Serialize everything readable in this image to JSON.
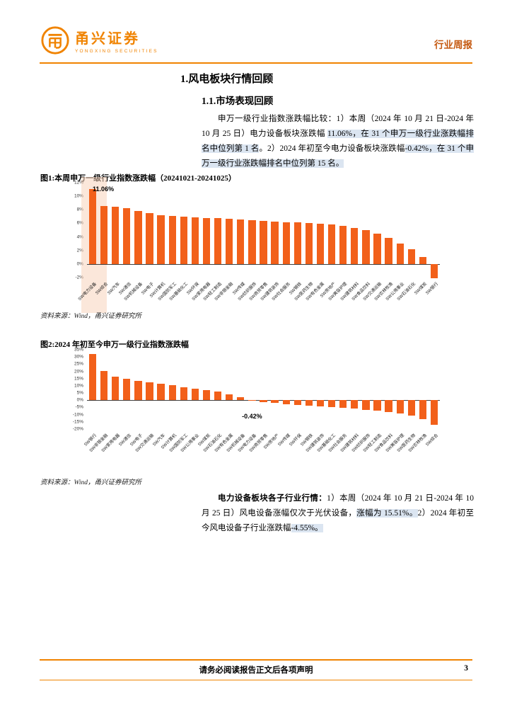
{
  "page": {
    "accent": "#f08300",
    "secondary_accent": "#c55a11",
    "bar_color": "#f2601a",
    "highlight_color": "#dbe5f1"
  },
  "header": {
    "logo_text": "甬兴证券",
    "logo_subtext": "YONGXING SECURITIES",
    "report_type": "行业周报"
  },
  "sections": {
    "h1": "1.风电板块行情回顾",
    "h2": "1.1.市场表现回顾"
  },
  "paragraph1": {
    "segments": [
      {
        "text": "申万一级行业指数涨跌幅比较：1）本周（2024 年 10 月 21 日-2024 年 10 月 25 日）电力设备板块涨跌幅 ",
        "hl": false
      },
      {
        "text": "11.06%，在 31 个申万一级行业涨跌幅排名中位列第 1 名",
        "hl": true
      },
      {
        "text": "。2）2024 年初至今电力设备板块涨跌幅",
        "hl": false
      },
      {
        "text": "-0.42%，在 31 个申万一级行业涨跌幅排名中位列第 15 名。",
        "hl": true
      }
    ]
  },
  "paragraph2": {
    "segments": [
      {
        "text": "电力设备板块各子行业行情：",
        "hl": false,
        "bold": true
      },
      {
        "text": "1）本周（2024 年 10 月 21 日-2024 年 10 月 25 日）风电设备涨幅仅次于光伏设备，",
        "hl": false
      },
      {
        "text": "涨幅为 15.51%。",
        "hl": true
      },
      {
        "text": "2）2024 年初至今风电设备子行业涨跌幅",
        "hl": false
      },
      {
        "text": "-4.55%。",
        "hl": true
      }
    ]
  },
  "chart_data": [
    {
      "type": "bar",
      "title": "图1:本周申万一级行业指数涨跌幅（20241021-20241025）",
      "source": "资料来源：Wind，甬兴证券研究所",
      "ylim": [
        -2,
        12
      ],
      "yticks": [
        12,
        10,
        8,
        6,
        4,
        2,
        0,
        -2
      ],
      "ytick_suffix": "%",
      "grid": false,
      "highlight_index": 0,
      "annotation": {
        "text": "11.06%",
        "x_index": 0,
        "y_value": 11.55,
        "align": "left"
      },
      "categories": [
        "SW电力设备",
        "SW综合",
        "SW汽车",
        "SW通信",
        "SW机械设备",
        "SW电子",
        "SW计算机",
        "SW国防军工",
        "SW基础化工",
        "SW环保",
        "SW家用电器",
        "SW轻工制造",
        "SW非银金融",
        "SW传媒",
        "SW纺织服饰",
        "SW商贸零售",
        "SW建筑装饰",
        "SW社会服务",
        "SW钢铁",
        "SW医药生物",
        "SW有色金属",
        "SW房地产",
        "SW美容护理",
        "SW建筑材料",
        "SW食品饮料",
        "SW交通运输",
        "SW农林牧渔",
        "SW公用事业",
        "SW石油石化",
        "SW煤炭",
        "SW银行"
      ],
      "values": [
        11.06,
        8.6,
        8.4,
        8.2,
        7.8,
        7.5,
        7.2,
        7.1,
        7.0,
        6.9,
        6.8,
        6.8,
        6.7,
        6.6,
        6.5,
        6.4,
        6.3,
        6.2,
        6.1,
        6.0,
        5.9,
        5.8,
        5.6,
        5.3,
        5.0,
        4.5,
        3.8,
        3.0,
        2.2,
        1.0,
        -2.1
      ]
    },
    {
      "type": "bar",
      "title": "图2:2024 年初至今申万一级行业指数涨跌幅",
      "source": "资料来源：Wind，甬兴证券研究所",
      "ylim": [
        -20,
        35
      ],
      "yticks": [
        35,
        30,
        25,
        20,
        15,
        10,
        5,
        0,
        -5,
        -10,
        -15,
        -20
      ],
      "ytick_suffix": "%",
      "grid": false,
      "annotation": {
        "text": "-0.42%",
        "x_index": 14,
        "y_value": -8.5,
        "align": "center"
      },
      "categories": [
        "SW银行",
        "SW非银金融",
        "SW家用电器",
        "SW通信",
        "SW电子",
        "SW交通运输",
        "SW汽车",
        "SW计算机",
        "SW国防军工",
        "SW公用事业",
        "SW煤炭",
        "SW石油石化",
        "SW有色金属",
        "SW机械设备",
        "SW电力设备",
        "SW商贸零售",
        "SW房地产",
        "SW传媒",
        "SW环保",
        "SW钢铁",
        "SW建筑装饰",
        "SW基础化工",
        "SW社会服务",
        "SW建筑材料",
        "SW纺织服饰",
        "SW轻工制造",
        "SW食品饮料",
        "SW美容护理",
        "SW医药生物",
        "SW农林牧渔",
        "SW综合"
      ],
      "values": [
        32,
        20.5,
        16.5,
        15,
        13.5,
        12.5,
        11.5,
        10.5,
        9,
        8,
        7,
        6,
        4,
        2,
        -0.42,
        -1.2,
        -2,
        -2.6,
        -3.2,
        -3.8,
        -4.3,
        -4.8,
        -5.3,
        -5.8,
        -6.5,
        -7.2,
        -8,
        -9,
        -10.5,
        -13,
        -17
      ]
    }
  ],
  "footer": {
    "disclaimer": "请务必阅读报告正文后各项声明",
    "page_number": "3"
  }
}
